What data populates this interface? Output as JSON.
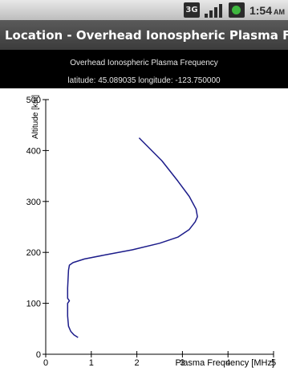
{
  "status_bar": {
    "network_type": "3G",
    "time": "1:54",
    "ampm": "AM",
    "icons": [
      "3g-network-icon",
      "signal-strength-icon",
      "battery-icon"
    ]
  },
  "app": {
    "title": "Location - Overhead Ionospheric Plasma Fr..."
  },
  "header": {
    "title": "Overhead Ionospheric Plasma Frequency",
    "coordinates": "latitude: 45.089035 longitude: -123.750000"
  },
  "colors": {
    "curve": "#1c1c8a",
    "axes": "#000000"
  },
  "chart_data": {
    "type": "line",
    "title": "",
    "xlabel": "Plasma Frequency [MHz]",
    "ylabel": "Altitude [km]",
    "xlim": [
      0,
      5
    ],
    "ylim": [
      0,
      500
    ],
    "xticks": [
      0,
      1,
      2,
      3,
      4,
      5
    ],
    "yticks": [
      0,
      100,
      200,
      300,
      400,
      500
    ],
    "grid": false,
    "series": [
      {
        "x": [
          0.71,
          0.62,
          0.55,
          0.5,
          0.48,
          0.48,
          0.48,
          0.52,
          0.48,
          0.48,
          0.5,
          0.52,
          0.6,
          0.85,
          1.3,
          1.9,
          2.5,
          2.9,
          3.15,
          3.28,
          3.33,
          3.3,
          3.15,
          2.9,
          2.55,
          2.05
        ],
        "y": [
          33,
          38,
          45,
          55,
          75,
          95,
          100,
          105,
          110,
          130,
          165,
          175,
          180,
          187,
          195,
          205,
          218,
          230,
          245,
          260,
          270,
          285,
          310,
          340,
          380,
          425
        ]
      }
    ]
  }
}
